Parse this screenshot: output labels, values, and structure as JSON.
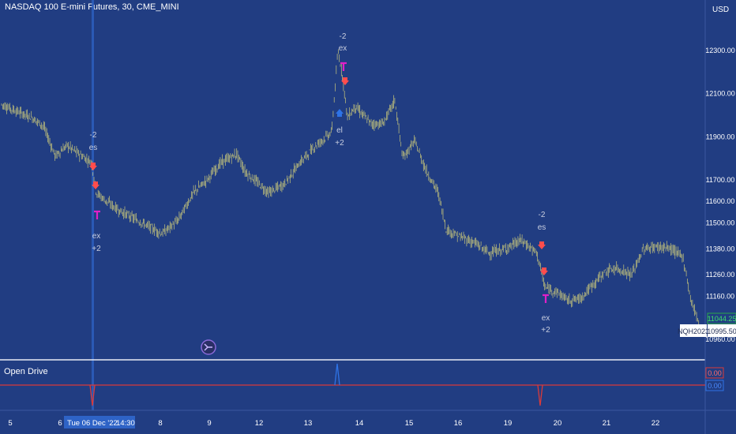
{
  "header": {
    "title": "NASDAQ 100 E-mini Futures, 30, CME_MINI",
    "currency": "USD"
  },
  "colors": {
    "background": "#213d82",
    "candle": "#c9c77a",
    "sell_arrow": "#ff4d4d",
    "buy_arrow": "#2e73e6",
    "exit_arrow": "#e020c8",
    "indicator_line": "#d93a3a",
    "label_text": "#c8cee0"
  },
  "price_axis": {
    "ticks": [
      "12300.00",
      "12100.00",
      "11900.00",
      "11700.00",
      "11600.00",
      "11500.00",
      "11380.00",
      "11260.00",
      "11160.00",
      "10960.00"
    ],
    "last_price": "11044.25",
    "symbol_tag": "NQH2023",
    "crosshair_price": "10995.50"
  },
  "time_axis": {
    "ticks": [
      "5",
      "6",
      "8",
      "9",
      "12",
      "13",
      "14",
      "15",
      "16",
      "19",
      "20",
      "21",
      "22"
    ],
    "crosshair_label": "Tue 06 Dec '22",
    "crosshair_time": "14:30"
  },
  "indicator": {
    "name": "Open Drive",
    "value_1": "0.00",
    "value_2": "0.00"
  },
  "chart_data": {
    "type": "candlestick",
    "title": "NASDAQ 100 E-mini Futures, 30, CME_MINI",
    "ylabel": "USD",
    "ylim": [
      10900,
      12400
    ],
    "x_ticks": [
      "5",
      "6",
      "8",
      "9",
      "12",
      "13",
      "14",
      "15",
      "16",
      "19",
      "20",
      "21",
      "22"
    ],
    "series": [
      {
        "name": "NQH2023",
        "approx_path_x": [
          "5",
          "6",
          "8",
          "9",
          "12",
          "13",
          "14",
          "15",
          "16",
          "19",
          "20",
          "21",
          "22"
        ],
        "approx_close": [
          12050,
          11780,
          11480,
          11780,
          11620,
          11880,
          12040,
          11960,
          11420,
          11340,
          11140,
          11280,
          11380
        ],
        "last": 11044.25
      }
    ],
    "trade_markers": [
      {
        "text_top": "-2",
        "tag_top": "es",
        "tag_bottom": "ex",
        "text_bottom": "+2"
      },
      {
        "text_top": "-2",
        "tag_top": "ex",
        "tag_bottom": "el",
        "text_bottom": "+2"
      },
      {
        "text_top": "-2",
        "tag_top": "es",
        "tag_bottom": "ex",
        "text_bottom": "+2"
      }
    ],
    "indicator_series": {
      "name": "Open Drive",
      "baseline": 0.0,
      "spikes": [
        {
          "x": "6",
          "dir": "down"
        },
        {
          "x": "13",
          "dir": "up"
        },
        {
          "x": "19",
          "dir": "down"
        }
      ]
    }
  }
}
